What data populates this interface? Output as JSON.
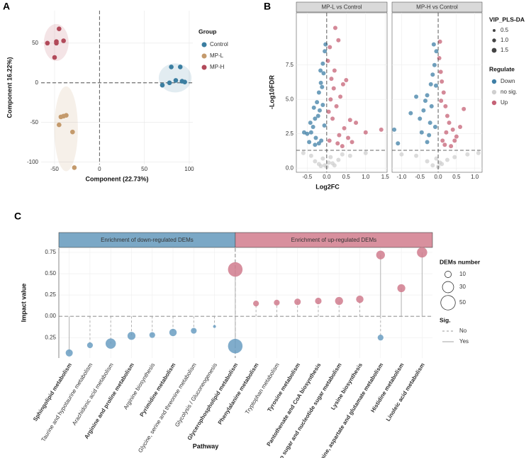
{
  "chart_data": [
    {
      "type": "scatter",
      "panel_label": "A",
      "xlabel": "Component (22.73%)",
      "ylabel": "Component 16.22%)",
      "xlim": [
        -65,
        104
      ],
      "xticks": [
        -50,
        0,
        50,
        100
      ],
      "ylim": [
        -103,
        91
      ],
      "yticks": [
        50,
        0,
        -50,
        -100
      ],
      "grid": true,
      "zero_lines": true,
      "legend_title": "Group",
      "series": [
        {
          "name": "Control",
          "color": "#3b7ea1",
          "x": [
            70,
            78,
            80,
            85,
            90,
            92,
            95
          ],
          "values": [
            -3,
            0,
            20,
            3,
            20,
            2,
            1
          ]
        },
        {
          "name": "MP-L",
          "color": "#c49a6c",
          "x": [
            -43,
            -40,
            -37,
            -45,
            -30,
            -28
          ],
          "values": [
            -43,
            -42,
            -41,
            -53,
            -62,
            -107
          ]
        },
        {
          "name": "MP-H",
          "color": "#b24a5a",
          "x": [
            -58,
            -48,
            -45,
            -40,
            -50,
            -48
          ],
          "values": [
            50,
            52,
            68,
            53,
            32,
            50
          ]
        }
      ]
    },
    {
      "type": "volcano",
      "panel_label": "B",
      "xlabel": "Log2FC",
      "ylabel": "-Log10FDR",
      "ylim": [
        -0.3,
        11.3
      ],
      "yticks": [
        {
          "value": 0,
          "label": "0.0"
        },
        2.5,
        {
          "value": 5,
          "label": "5.0"
        },
        7.5
      ],
      "threshold_y": 1.3,
      "grid": true,
      "size_legend": {
        "title": "VIP_PLS-DA",
        "values": [
          0.5,
          {
            "value": 1,
            "label": "1.0"
          },
          1.5
        ]
      },
      "color_legend_title": "Regulate",
      "facets": [
        {
          "title": "MP-L vs Control",
          "xlim": [
            -0.78,
            1.55
          ],
          "xticks": [
            -0.5,
            {
              "value": 0,
              "label": "0.0"
            },
            0.5,
            {
              "value": 1,
              "label": "1.0"
            },
            1.5
          ],
          "series": [
            {
              "name": "Down",
              "color": "#3f7fa6",
              "x": [
                -0.05,
                -0.1,
                -0.15,
                -0.2,
                -0.25,
                -0.3,
                -0.35,
                -0.4,
                -0.5,
                -0.58,
                -0.08,
                -0.12,
                -0.18,
                -0.22,
                -0.28,
                -0.33,
                -0.42,
                -0.06,
                -0.14,
                -0.03,
                -0.2,
                -0.3,
                -0.1,
                -0.16,
                -0.45
              ],
              "values": [
                8.5,
                7.6,
                6.2,
                5.5,
                4.8,
                3.6,
                3.0,
                2.6,
                2.5,
                2.6,
                6.9,
                5.9,
                4.2,
                3.8,
                2.2,
                4.4,
                3.3,
                3.1,
                2.0,
                9.0,
                1.8,
                1.7,
                4.6,
                7.1,
                1.9
              ]
            },
            {
              "name": "no sig.",
              "color": "#cfcfcf",
              "x": [
                -0.6,
                -0.4,
                -0.3,
                -0.2,
                -0.1,
                -0.05,
                0,
                0.05,
                0.1,
                0.2,
                0.3,
                0.4,
                0.6,
                1.0,
                -0.15,
                0.15
              ],
              "values": [
                1.1,
                0.9,
                0.5,
                0.3,
                0.7,
                0.2,
                0.1,
                0.4,
                0.8,
                0.2,
                0.6,
                1.0,
                0.9,
                1.1,
                0.15,
                0.35
              ]
            },
            {
              "name": "Up",
              "color": "#c56276",
              "x": [
                0.03,
                0.08,
                0.12,
                0.18,
                0.22,
                0.3,
                0.35,
                0.42,
                0.5,
                0.6,
                0.75,
                1.0,
                1.4,
                0.05,
                0.15,
                0.25,
                0.32,
                0.45,
                0.1,
                0.2,
                0.28,
                0.55,
                0.4,
                0.07,
                0.65
              ],
              "values": [
                7.8,
                8.8,
                6.5,
                5.8,
                10.2,
                9.3,
                5.2,
                6.1,
                6.4,
                3.5,
                3.3,
                2.6,
                2.8,
                4.1,
                3.6,
                4.5,
                2.4,
                2.9,
                5.0,
                7.1,
                1.8,
                2.2,
                1.6,
                2.0,
                1.9
              ]
            }
          ]
        },
        {
          "title": "MP-H vs Control",
          "xlim": [
            -1.26,
            1.2
          ],
          "xticks": [
            {
              "value": -1,
              "label": "-1.0"
            },
            -0.5,
            {
              "value": 0,
              "label": "0.0"
            },
            0.5,
            {
              "value": 1,
              "label": "1.0"
            }
          ],
          "series": [
            {
              "name": "Down",
              "color": "#3f7fa6",
              "x": [
                -0.05,
                -0.1,
                -0.15,
                -0.2,
                -0.3,
                -0.35,
                -0.4,
                -0.5,
                -0.6,
                -0.75,
                -1.2,
                -1.1,
                -0.25,
                -0.12,
                -0.08,
                -0.45,
                -0.18,
                -0.3,
                -0.06,
                -0.22
              ],
              "values": [
                8.5,
                7.5,
                6.8,
                6.1,
                5.3,
                4.9,
                4.2,
                3.6,
                5.2,
                4.0,
                2.8,
                1.8,
                2.4,
                9.0,
                3.0,
                2.6,
                4.5,
                1.9,
                6.0,
                3.3
              ]
            },
            {
              "name": "no sig.",
              "color": "#cfcfcf",
              "x": [
                -1.0,
                -0.6,
                -0.3,
                -0.15,
                0,
                0.1,
                0.25,
                0.45,
                0.8,
                1.1,
                -0.05,
                0.05
              ],
              "values": [
                1.0,
                0.9,
                0.5,
                0.2,
                0.1,
                0.3,
                0.6,
                0.8,
                1.0,
                1.1,
                0.7,
                0.4
              ]
            },
            {
              "name": "Up",
              "color": "#c56276",
              "x": [
                0.03,
                0.07,
                0.1,
                0.15,
                0.2,
                0.25,
                0.3,
                0.4,
                0.5,
                0.6,
                0.7,
                0.12,
                0.05,
                0.18,
                0.35,
                0.45,
                0.08,
                0.22
              ],
              "values": [
                8.0,
                7.0,
                6.3,
                5.5,
                4.5,
                3.8,
                3.3,
                2.8,
                2.3,
                3.0,
                4.3,
                2.0,
                9.2,
                1.7,
                1.6,
                2.0,
                4.9,
                2.6
              ]
            }
          ]
        }
      ]
    },
    {
      "type": "lollipop",
      "panel_label": "C",
      "xlabel": "Pathway",
      "ylabel": "Impact value",
      "ylim": [
        -0.49,
        0.8
      ],
      "yticks": [
        0.75,
        {
          "value": 0.5,
          "label": "0.50"
        },
        0.25,
        {
          "value": 0,
          "label": "0.00"
        },
        {
          "value": -0.25,
          "label": "0.25"
        }
      ],
      "grid": true,
      "strips": [
        {
          "label": "Enrichment of down-regulated DEMs",
          "color": "#7ba8c6"
        },
        {
          "label": "Enrichment of up-regulated DEMs",
          "color": "#d8909e"
        }
      ],
      "categories": [
        "Sphingolipid metabolism",
        "Taurine and hypotaurine metabolism",
        "Arachidonic acid metabolism",
        "Arginine and proline metabolism",
        "Arginine biosynthesis",
        "Pyrimidine metabolism",
        "Glycine, serine and threonine metabolism",
        "Glycolysis / Gluconeogenesis",
        "Glycerophospholipid metabolism",
        "Phenylalanine metabolism",
        "Tryptophan metabolism",
        "Tyrosine metabolism",
        "Pantothenate and CoA biosynthesis",
        "Amino sugar and nucleotide sugar metabolism",
        "Lysine biosynthesis",
        "Alanine, aspartate and glutamate metabolism",
        "Histidine metabolism",
        "Linoleic acid metabolism"
      ],
      "category_bold": [
        true,
        false,
        false,
        true,
        false,
        true,
        false,
        false,
        true,
        true,
        false,
        true,
        true,
        true,
        true,
        true,
        true,
        true
      ],
      "size_legend": {
        "title": "DEMs number",
        "values": [
          10,
          30,
          50
        ]
      },
      "sig_legend": {
        "title": "Sig.",
        "labels": [
          "No",
          "Yes"
        ]
      },
      "series": [
        {
          "color": "#6a9ec2",
          "values": [
            -0.43,
            -0.34,
            -0.32,
            -0.23,
            -0.22,
            -0.19,
            -0.17,
            -0.12,
            -0.35,
            null,
            null,
            null,
            null,
            null,
            null,
            -0.25,
            null,
            null
          ],
          "sizes": [
            12,
            8,
            25,
            15,
            8,
            13,
            8,
            2,
            50,
            null,
            null,
            null,
            null,
            null,
            null,
            8,
            null,
            null
          ],
          "sig": [
            true,
            false,
            false,
            false,
            false,
            false,
            false,
            false,
            true,
            null,
            null,
            null,
            null,
            null,
            null,
            false,
            null,
            null
          ]
        },
        {
          "color": "#d07b8d",
          "values": [
            null,
            null,
            null,
            null,
            null,
            null,
            null,
            null,
            0.55,
            0.15,
            0.16,
            0.17,
            0.18,
            0.18,
            0.2,
            0.72,
            0.33,
            0.75
          ],
          "sizes": [
            null,
            null,
            null,
            null,
            null,
            null,
            null,
            null,
            50,
            8,
            8,
            10,
            10,
            15,
            13,
            18,
            15,
            25
          ],
          "sig": [
            null,
            null,
            null,
            null,
            null,
            null,
            null,
            null,
            true,
            false,
            false,
            false,
            false,
            false,
            false,
            true,
            true,
            true
          ]
        }
      ]
    }
  ]
}
